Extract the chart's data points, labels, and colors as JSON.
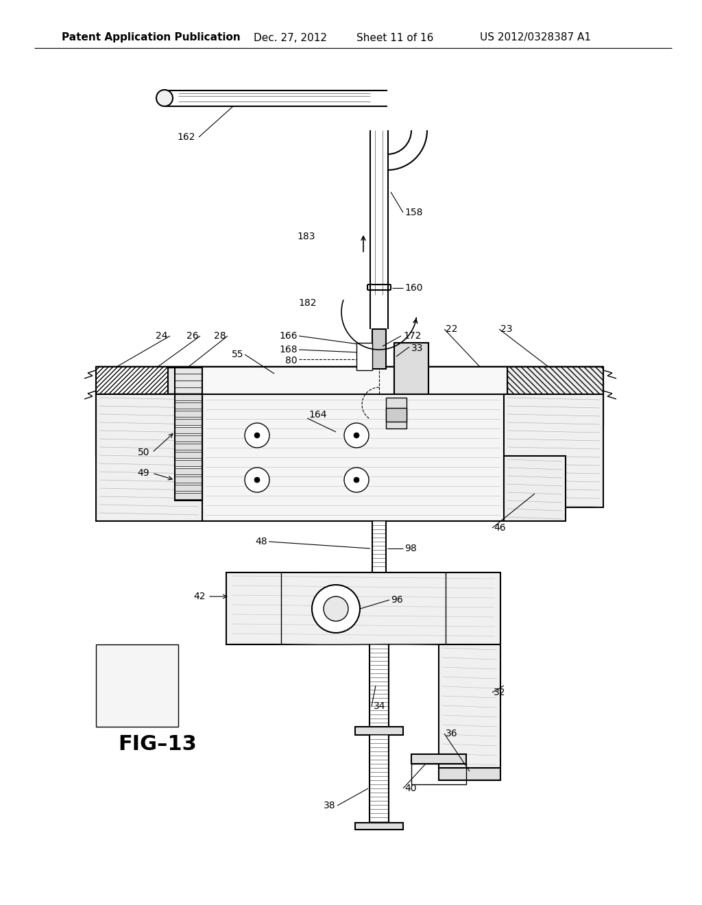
{
  "bg_color": "#ffffff",
  "line_color": "#000000",
  "header_text": "Patent Application Publication",
  "header_date": "Dec. 27, 2012",
  "header_sheet": "Sheet 11 of 16",
  "header_patent": "US 2012/0328387 A1",
  "fig_label": "FIG–13",
  "header_fontsize": 11,
  "label_fontsize": 10,
  "fig_label_fontsize": 22
}
